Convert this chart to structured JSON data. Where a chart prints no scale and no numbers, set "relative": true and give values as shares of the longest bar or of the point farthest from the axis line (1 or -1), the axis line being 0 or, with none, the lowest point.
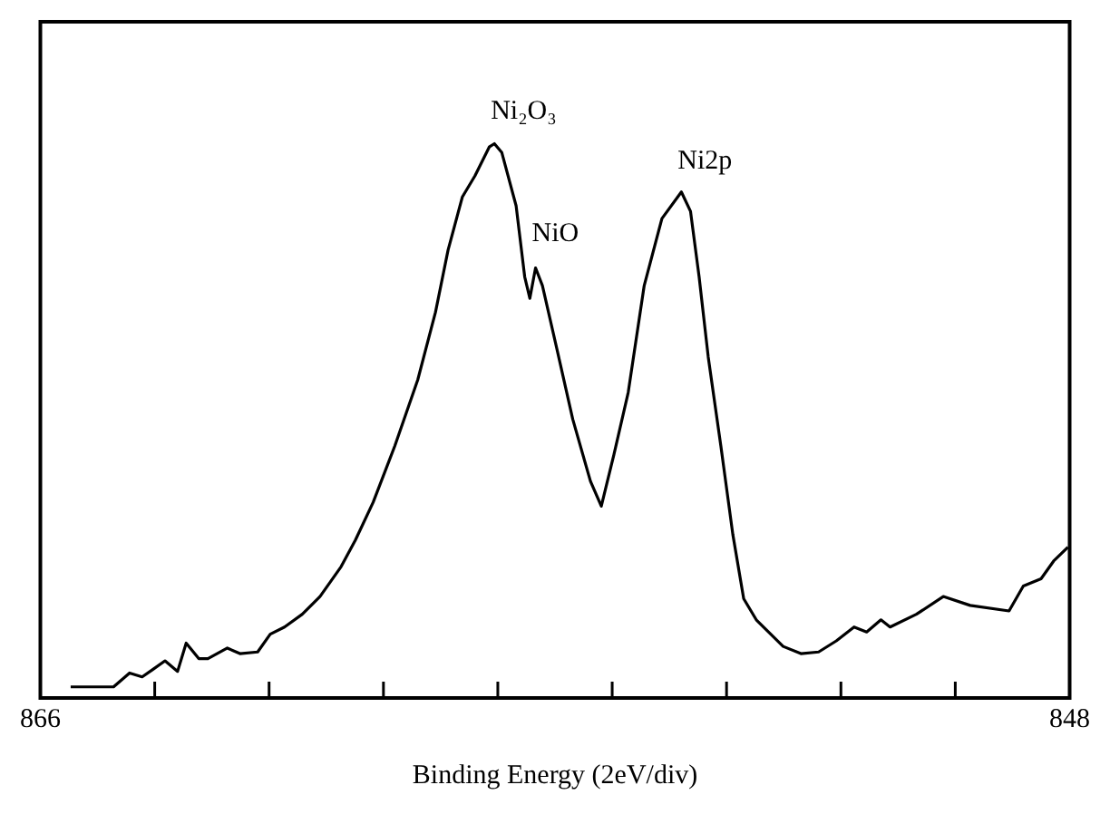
{
  "chart_data": {
    "type": "line",
    "relative": true,
    "xlabel": "Binding Energy (2eV/div)",
    "xlim": [
      866,
      848
    ],
    "xticks": [
      866,
      {
        "value": 864,
        "label": null
      },
      {
        "value": 862,
        "label": null
      },
      {
        "value": 860,
        "label": null
      },
      {
        "value": 858,
        "label": null
      },
      {
        "value": 856,
        "label": null
      },
      {
        "value": 854,
        "label": null
      },
      {
        "value": 852,
        "label": null
      },
      {
        "value": 850,
        "label": null
      },
      848
    ],
    "tick_labels": "x",
    "grid": false,
    "marker": "none",
    "line_style": "solid",
    "annotations": [
      {
        "text": "Ni₂O₃",
        "x": 858.06,
        "y": 1
      },
      {
        "text": "NiO",
        "x": 857.34,
        "y": 0.78
      },
      {
        "text": "Ni2p",
        "x": 854.79,
        "y": 0.91
      }
    ],
    "series": [
      {
        "color": "#000000",
        "x": [
          865.47,
          864.72,
          864.44,
          864.22,
          864.04,
          863.82,
          863.6,
          863.45,
          863.23,
          863.07,
          862.73,
          862.51,
          862.2,
          861.98,
          861.73,
          861.42,
          861.11,
          860.74,
          860.49,
          860.18,
          859.8,
          859.4,
          859.09,
          858.87,
          858.62,
          858.4,
          858.15,
          858.06,
          857.93,
          857.68,
          857.53,
          857.44,
          857.34,
          857.22,
          856.97,
          856.69,
          856.38,
          856.19,
          855.97,
          855.72,
          855.44,
          855.13,
          854.79,
          854.63,
          854.48,
          854.32,
          854.1,
          853.89,
          853.7,
          853.48,
          853.01,
          852.7,
          852.39,
          852.08,
          851.77,
          851.55,
          851.3,
          851.14,
          850.68,
          850.21,
          849.74,
          849.06,
          848.81,
          848.5,
          848.28,
          848.03
        ],
        "values": [
          0.02,
          0.02,
          0.045,
          0.038,
          0.051,
          0.067,
          0.048,
          0.099,
          0.071,
          0.071,
          0.09,
          0.08,
          0.083,
          0.115,
          0.128,
          0.151,
          0.183,
          0.237,
          0.285,
          0.353,
          0.455,
          0.574,
          0.696,
          0.808,
          0.904,
          0.942,
          0.994,
          1,
          0.984,
          0.888,
          0.76,
          0.721,
          0.776,
          0.744,
          0.631,
          0.503,
          0.391,
          0.346,
          0.439,
          0.551,
          0.744,
          0.865,
          0.913,
          0.878,
          0.76,
          0.615,
          0.455,
          0.295,
          0.179,
          0.141,
          0.093,
          0.08,
          0.083,
          0.103,
          0.128,
          0.119,
          0.141,
          0.128,
          0.151,
          0.183,
          0.167,
          0.157,
          0.202,
          0.215,
          0.247,
          0.272
        ]
      }
    ]
  }
}
